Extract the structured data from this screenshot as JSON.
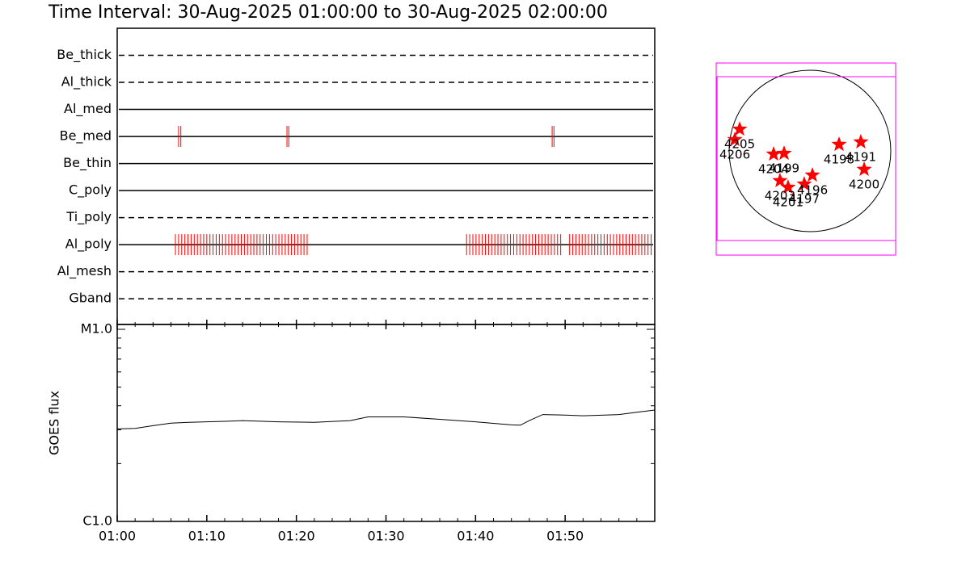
{
  "chart_data": [
    {
      "type": "timeline",
      "title": "Time Interval: 30-Aug-2025 01:00:00 to 30-Aug-2025 02:00:00",
      "xlim": [
        0,
        60
      ],
      "xticks": [
        {
          "value": 0,
          "label": "01:00"
        },
        {
          "value": 10,
          "label": "01:10"
        },
        {
          "value": 20,
          "label": "01:20"
        },
        {
          "value": 30,
          "label": "01:30"
        },
        {
          "value": 40,
          "label": "01:40"
        },
        {
          "value": 50,
          "label": "01:50"
        }
      ],
      "xminorticks": [
        2,
        4,
        6,
        8,
        12,
        14,
        16,
        18,
        22,
        24,
        26,
        28,
        32,
        34,
        36,
        38,
        42,
        44,
        46,
        48,
        52,
        54,
        56,
        58
      ],
      "color": "#ff0000",
      "rows": [
        {
          "name": "Be_thick",
          "style": "dashed",
          "times": []
        },
        {
          "name": "Al_thick",
          "style": "dashed",
          "times": []
        },
        {
          "name": "Al_med",
          "style": "solid",
          "times": []
        },
        {
          "name": "Be_med",
          "style": "solid",
          "times": [
            6.85,
            7.1,
            18.95,
            19.15,
            48.55,
            48.75
          ]
        },
        {
          "name": "Be_thin",
          "style": "solid",
          "times": []
        },
        {
          "name": "C_poly",
          "style": "solid",
          "times": []
        },
        {
          "name": "Ti_poly",
          "style": "dashed",
          "times": []
        },
        {
          "name": "Al_poly",
          "style": "solid",
          "times": [
            6.5,
            6.85,
            7.2,
            7.55,
            7.9,
            8.25,
            8.6,
            8.95,
            9.3,
            9.65,
            10.0,
            10.35,
            10.7,
            11.05,
            11.4,
            11.75,
            12.1,
            12.45,
            12.8,
            13.15,
            13.5,
            13.85,
            14.2,
            14.55,
            14.9,
            15.25,
            15.6,
            15.95,
            16.3,
            16.65,
            17.0,
            17.35,
            17.7,
            18.05,
            18.4,
            18.75,
            19.1,
            19.45,
            19.8,
            20.15,
            20.5,
            20.85,
            21.2,
            39.0,
            39.35,
            39.7,
            40.05,
            40.4,
            40.75,
            41.1,
            41.45,
            41.8,
            42.15,
            42.5,
            42.85,
            43.2,
            43.55,
            43.9,
            44.25,
            44.6,
            44.95,
            45.3,
            45.65,
            46.0,
            46.35,
            46.7,
            47.05,
            47.4,
            47.75,
            48.1,
            48.45,
            48.8,
            49.15,
            49.5,
            50.5,
            50.85,
            51.2,
            51.55,
            51.9,
            52.25,
            52.6,
            52.95,
            53.3,
            53.65,
            54.0,
            54.35,
            54.7,
            55.05,
            55.4,
            55.75,
            56.1,
            56.45,
            56.8,
            57.15,
            57.5,
            57.85,
            58.2,
            58.55,
            58.9,
            59.25,
            59.6
          ]
        },
        {
          "name": "Al_mesh",
          "style": "dashed",
          "times": []
        },
        {
          "name": "Gband",
          "style": "dashed",
          "times": []
        }
      ]
    },
    {
      "type": "line",
      "ylabel": "GOES flux",
      "log_scale": true,
      "xlim": [
        0,
        60
      ],
      "ylim": [
        1e-06,
        1.06e-05
      ],
      "yticks": [
        {
          "value": 1e-06,
          "label": "C1.0"
        },
        {
          "value": 1e-05,
          "label": "M1.0"
        }
      ],
      "yminorticks": [
        2e-06,
        3e-06,
        4e-06,
        5e-06,
        6e-06,
        7e-06,
        8e-06,
        9e-06
      ],
      "color": "#000000",
      "x": [
        0,
        2,
        4,
        6,
        8,
        12,
        14,
        18,
        22,
        26,
        28,
        32,
        36,
        40,
        44,
        45,
        46,
        47.5,
        50,
        52,
        56,
        58,
        60
      ],
      "values": [
        3.03e-06,
        3.05e-06,
        3.15e-06,
        3.25e-06,
        3.28e-06,
        3.32e-06,
        3.35e-06,
        3.3e-06,
        3.28e-06,
        3.35e-06,
        3.5e-06,
        3.5e-06,
        3.4e-06,
        3.3e-06,
        3.18e-06,
        3.17e-06,
        3.35e-06,
        3.6e-06,
        3.58e-06,
        3.55e-06,
        3.6e-06,
        3.7e-06,
        3.8e-06
      ]
    },
    {
      "type": "scatter",
      "solar_radius": 950,
      "color": "#ff0000",
      "box_color": "#ff00ff",
      "boxes": [
        {
          "x": [
            -1102,
            1007
          ],
          "y": [
            -1226,
            1035
          ]
        },
        {
          "x": [
            -1092,
            1007
          ],
          "y": [
            -1054,
            874
          ]
        }
      ],
      "labels": [
        "4205",
        "4206",
        "4204",
        "4199",
        "4203",
        "4201",
        "4197",
        "4196",
        "4198",
        "4191",
        "4200"
      ],
      "x": [
        -826,
        -883,
        -427,
        -304,
        -352,
        -257,
        -67,
        29,
        342,
        598,
        637
      ],
      "values": [
        256,
        133,
        -38,
        -29,
        -351,
        -428,
        -390,
        -285,
        76,
        105,
        -218
      ]
    }
  ]
}
